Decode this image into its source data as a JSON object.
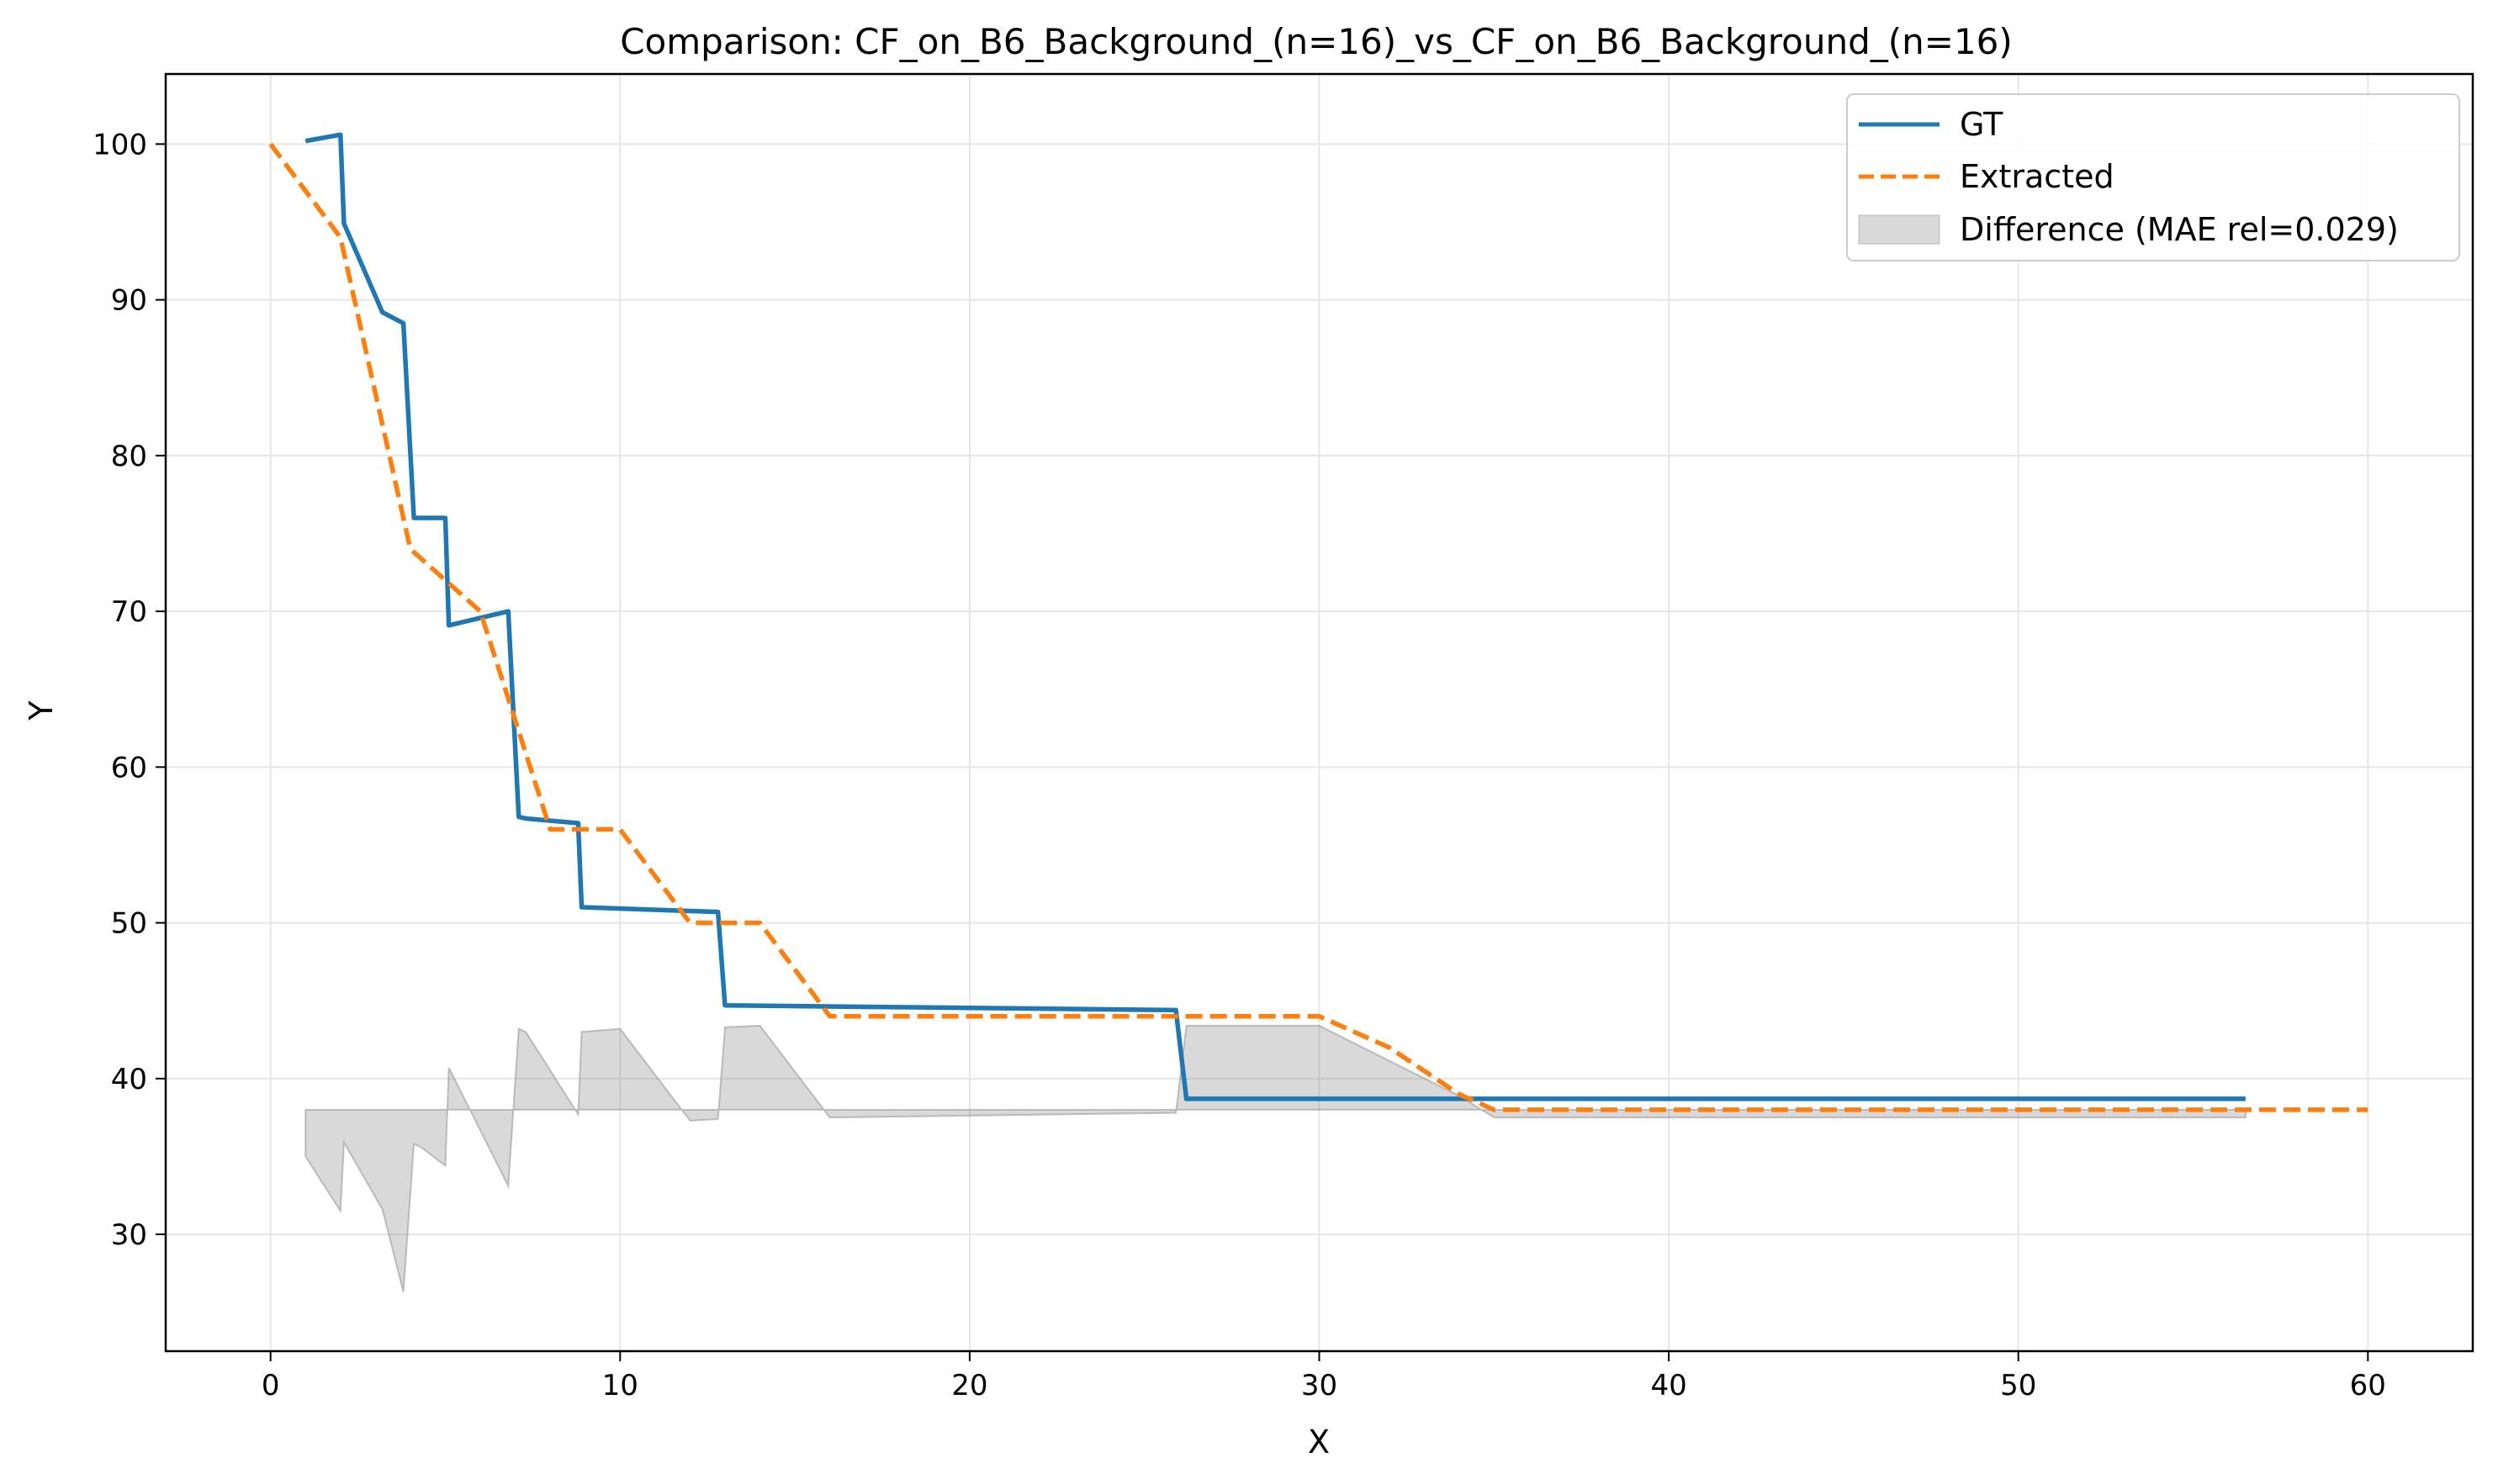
{
  "chart_data": {
    "type": "line",
    "title": "Comparison: CF_on_B6_Background_(n=16)_vs_CF_on_B6_Background_(n=16)",
    "xlabel": "X",
    "ylabel": "Y",
    "xlim": [
      -3,
      63
    ],
    "ylim": [
      22.5,
      104.5
    ],
    "xticks": [
      0,
      10,
      20,
      30,
      40,
      50,
      60
    ],
    "yticks": [
      30,
      40,
      50,
      60,
      70,
      80,
      90,
      100
    ],
    "grid": true,
    "legend_position": "top-right",
    "series": [
      {
        "name": "GT",
        "style": "solid",
        "color": "#1f77b4",
        "x": [
          1,
          2,
          2.1,
          3.2,
          3.8,
          4.1,
          4.3,
          5,
          5.1,
          6.8,
          7.1,
          7.3,
          8.8,
          8.9,
          12.8,
          13,
          25.9,
          26.2,
          56.5
        ],
        "y": [
          100.2,
          100.6,
          94.9,
          89.2,
          88.5,
          76.0,
          76.0,
          76.0,
          69.1,
          70.0,
          56.8,
          56.7,
          56.4,
          51.0,
          50.7,
          44.7,
          44.4,
          38.7,
          38.7
        ]
      },
      {
        "name": "Extracted",
        "style": "dashed",
        "color": "#ff7f0e",
        "x": [
          0,
          2,
          4,
          6,
          8,
          10,
          12,
          14,
          16,
          18,
          20,
          22,
          24,
          26,
          28,
          30,
          32,
          34,
          35,
          40,
          50,
          60
        ],
        "y": [
          100,
          94,
          74,
          70,
          56,
          56,
          50,
          50,
          44,
          44,
          44,
          44,
          44,
          44,
          44,
          44,
          42,
          39,
          38,
          38,
          38,
          38
        ]
      }
    ],
    "difference": {
      "name": "Difference (MAE rel=0.029)",
      "color": "#808080",
      "baseline": 38,
      "x": [
        1,
        2,
        2.1,
        3.2,
        3.8,
        4.1,
        4.3,
        5,
        5.1,
        6.8,
        7.1,
        7.3,
        8.8,
        8.9,
        10,
        12,
        12.8,
        13,
        14,
        16,
        25.9,
        26.2,
        30,
        34,
        35,
        56.5
      ],
      "y": [
        35,
        31.5,
        35.9,
        31.6,
        26.3,
        35.8,
        35.6,
        34.4,
        40.7,
        33.1,
        43.2,
        43.0,
        37.7,
        43.0,
        43.2,
        37.3,
        37.4,
        43.3,
        43.4,
        37.5,
        37.8,
        43.4,
        43.4,
        38.9,
        37.5,
        37.5
      ]
    }
  }
}
